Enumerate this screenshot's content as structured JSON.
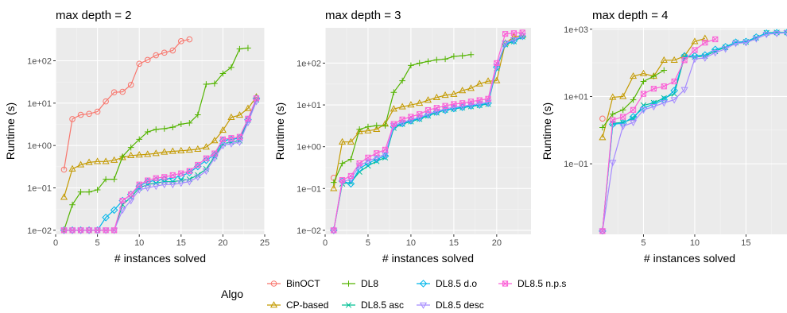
{
  "legend": {
    "title": "Algo",
    "position": "bottom"
  },
  "chart_data": [
    {
      "type": "line",
      "title": "max depth = 2",
      "xlabel": "# instances solved",
      "ylabel": "Runtime (s)",
      "y_scale": "log10",
      "xlim": [
        0,
        25
      ],
      "ylim": [
        0.008,
        600
      ],
      "x_ticks": [
        0,
        5,
        10,
        15,
        20,
        25
      ],
      "y_ticks": [
        {
          "value": 0.01,
          "label": "1e−02"
        },
        {
          "value": 0.1,
          "label": "1e−01"
        },
        {
          "value": 1,
          "label": "1e+00"
        },
        {
          "value": 10,
          "label": "1e+01"
        },
        {
          "value": 100,
          "label": "1e+02"
        }
      ],
      "series": [
        {
          "name": "BinOCT",
          "color": "#F8766D",
          "marker": "circle",
          "x": [
            1,
            2,
            3,
            4,
            5,
            6,
            7,
            8,
            9,
            10,
            11,
            12,
            13,
            14,
            15,
            16
          ],
          "y": [
            0.27,
            4.2,
            5.3,
            5.6,
            6.3,
            11,
            18,
            18.5,
            27,
            85,
            105,
            135,
            155,
            175,
            290,
            320
          ]
        },
        {
          "name": "CP-based",
          "color": "#C49A00",
          "marker": "triangle",
          "x": [
            1,
            2,
            3,
            4,
            5,
            6,
            7,
            8,
            9,
            10,
            11,
            12,
            13,
            14,
            15,
            16,
            17,
            18,
            19,
            20,
            21,
            22,
            23,
            24
          ],
          "y": [
            0.06,
            0.28,
            0.35,
            0.4,
            0.42,
            0.42,
            0.45,
            0.52,
            0.58,
            0.6,
            0.62,
            0.65,
            0.7,
            0.73,
            0.75,
            0.78,
            0.82,
            0.92,
            1.3,
            2.3,
            4.6,
            5.2,
            7.5,
            14
          ]
        },
        {
          "name": "DL8",
          "color": "#53B400",
          "marker": "plus",
          "x": [
            1,
            2,
            3,
            4,
            5,
            6,
            7,
            8,
            9,
            10,
            11,
            12,
            13,
            14,
            15,
            16,
            17,
            18,
            19,
            20,
            21,
            22,
            23
          ],
          "y": [
            0.01,
            0.04,
            0.08,
            0.08,
            0.09,
            0.16,
            0.16,
            0.55,
            0.9,
            1.4,
            2.1,
            2.4,
            2.5,
            2.7,
            3.2,
            3.4,
            5.3,
            28,
            29,
            50,
            70,
            190,
            200
          ]
        },
        {
          "name": "DL8.5 asc",
          "color": "#00C094",
          "marker": "cross",
          "x": [
            1,
            2,
            3,
            4,
            5,
            6,
            7,
            8,
            9,
            10,
            11,
            12,
            13,
            14,
            15,
            16,
            17,
            18,
            19,
            20,
            21,
            22,
            23,
            24
          ],
          "y": [
            0.01,
            0.01,
            0.01,
            0.01,
            0.01,
            0.01,
            0.01,
            0.04,
            0.06,
            0.1,
            0.12,
            0.13,
            0.14,
            0.14,
            0.15,
            0.16,
            0.2,
            0.28,
            0.55,
            1.1,
            1.2,
            1.3,
            4.0,
            12
          ]
        },
        {
          "name": "DL8.5 d.o",
          "color": "#00B6EB",
          "marker": "diamond",
          "x": [
            1,
            2,
            3,
            4,
            5,
            6,
            7,
            8,
            9,
            10,
            11,
            12,
            13,
            14,
            15,
            16,
            17,
            18,
            19,
            20,
            21,
            22,
            23,
            24
          ],
          "y": [
            0.01,
            0.01,
            0.01,
            0.01,
            0.01,
            0.02,
            0.03,
            0.05,
            0.07,
            0.11,
            0.14,
            0.15,
            0.16,
            0.17,
            0.19,
            0.23,
            0.32,
            0.45,
            0.6,
            1.3,
            1.4,
            1.5,
            4.1,
            13
          ]
        },
        {
          "name": "DL8.5 desc",
          "color": "#A58AFF",
          "marker": "triangle-down",
          "x": [
            1,
            2,
            3,
            4,
            5,
            6,
            7,
            8,
            9,
            10,
            11,
            12,
            13,
            14,
            15,
            16,
            17,
            18,
            19,
            20,
            21,
            22,
            23,
            24
          ],
          "y": [
            0.01,
            0.01,
            0.01,
            0.01,
            0.01,
            0.01,
            0.01,
            0.03,
            0.05,
            0.09,
            0.1,
            0.11,
            0.12,
            0.12,
            0.13,
            0.14,
            0.18,
            0.25,
            0.5,
            1.0,
            1.1,
            1.2,
            3.5,
            11
          ]
        },
        {
          "name": "DL8.5 n.p.s",
          "color": "#FB61D7",
          "marker": "square-x",
          "x": [
            1,
            2,
            3,
            4,
            5,
            6,
            7,
            8,
            9,
            10,
            11,
            12,
            13,
            14,
            15,
            16,
            17,
            18,
            19,
            20,
            21,
            22,
            23,
            24
          ],
          "y": [
            0.01,
            0.01,
            0.01,
            0.01,
            0.01,
            0.01,
            0.01,
            0.05,
            0.07,
            0.12,
            0.15,
            0.17,
            0.18,
            0.2,
            0.22,
            0.25,
            0.35,
            0.5,
            0.65,
            1.4,
            1.5,
            1.6,
            4.3,
            13
          ]
        }
      ]
    },
    {
      "type": "line",
      "title": "max depth = 3",
      "xlabel": "# instances solved",
      "ylabel": "Runtime (s)",
      "y_scale": "log10",
      "xlim": [
        0,
        24
      ],
      "ylim": [
        0.008,
        700
      ],
      "x_ticks": [
        0,
        5,
        10,
        15,
        20
      ],
      "y_ticks": [
        {
          "value": 0.01,
          "label": "1e−02"
        },
        {
          "value": 0.1,
          "label": "1e−01"
        },
        {
          "value": 1,
          "label": "1e+00"
        },
        {
          "value": 10,
          "label": "1e+01"
        },
        {
          "value": 100,
          "label": "1e+02"
        }
      ],
      "series": [
        {
          "name": "BinOCT",
          "color": "#F8766D",
          "marker": "circle",
          "x": [
            1
          ],
          "y": [
            0.18
          ]
        },
        {
          "name": "CP-based",
          "color": "#C49A00",
          "marker": "triangle",
          "x": [
            1,
            2,
            3,
            4,
            5,
            6,
            7,
            8,
            9,
            10,
            11,
            12,
            13,
            14,
            15,
            16,
            17,
            18,
            19,
            20,
            21,
            22,
            23
          ],
          "y": [
            0.1,
            1.3,
            1.3,
            2.3,
            2.4,
            2.6,
            3.5,
            8,
            9,
            10,
            11,
            13,
            15,
            17,
            18,
            22,
            25,
            32,
            37,
            38,
            300,
            420,
            460
          ]
        },
        {
          "name": "DL8",
          "color": "#53B400",
          "marker": "plus",
          "x": [
            1,
            2,
            3,
            4,
            5,
            6,
            7,
            8,
            9,
            10,
            11,
            12,
            13,
            14,
            15,
            16,
            17
          ],
          "y": [
            0.14,
            0.4,
            0.5,
            2.6,
            3.0,
            3.2,
            3.2,
            20,
            38,
            88,
            100,
            110,
            120,
            125,
            145,
            150,
            160
          ]
        },
        {
          "name": "DL8.5 asc",
          "color": "#00C094",
          "marker": "cross",
          "x": [
            1,
            2,
            3,
            4,
            5,
            6,
            7,
            8,
            9,
            10,
            11,
            12,
            13,
            14,
            15,
            16,
            17,
            18,
            19,
            20,
            21,
            22,
            23
          ],
          "y": [
            0.01,
            0.13,
            0.14,
            0.25,
            0.35,
            0.45,
            0.55,
            2.8,
            3.5,
            4.0,
            4.6,
            5.5,
            6.5,
            7.5,
            8.0,
            8.6,
            9.2,
            9.8,
            10.5,
            75,
            280,
            330,
            430
          ]
        },
        {
          "name": "DL8.5 d.o",
          "color": "#00B6EB",
          "marker": "diamond",
          "x": [
            1,
            2,
            3,
            4,
            5,
            6,
            7,
            8,
            9,
            10,
            11,
            12,
            13,
            14,
            15,
            16,
            17,
            18,
            19,
            20,
            21,
            22,
            23
          ],
          "y": [
            0.01,
            0.15,
            0.13,
            0.3,
            0.4,
            0.5,
            0.6,
            3.0,
            3.6,
            4.2,
            4.8,
            5.8,
            6.8,
            7.5,
            8.2,
            8.8,
            9.5,
            10,
            11,
            80,
            290,
            340,
            440
          ]
        },
        {
          "name": "DL8.5 desc",
          "color": "#A58AFF",
          "marker": "triangle-down",
          "x": [
            1,
            2,
            3,
            4,
            5,
            6,
            7,
            8,
            9,
            10,
            11,
            12,
            13,
            14,
            15,
            16,
            17,
            18,
            19,
            20,
            21,
            22,
            23
          ],
          "y": [
            0.01,
            0.14,
            0.17,
            0.35,
            0.45,
            0.55,
            0.65,
            3.2,
            3.8,
            4.4,
            5.0,
            6.0,
            7.0,
            8.0,
            8.8,
            9.4,
            10,
            10.8,
            11.5,
            85,
            300,
            360,
            450
          ]
        },
        {
          "name": "DL8.5 n.p.s",
          "color": "#FB61D7",
          "marker": "square-x",
          "x": [
            1,
            2,
            3,
            4,
            5,
            6,
            7,
            8,
            9,
            10,
            11,
            12,
            13,
            14,
            15,
            16,
            17,
            18,
            19,
            20,
            21,
            22,
            23
          ],
          "y": [
            0.01,
            0.16,
            0.2,
            0.4,
            0.55,
            0.7,
            0.85,
            3.5,
            4.5,
            5.2,
            6.0,
            7.5,
            8.5,
            9.5,
            10.5,
            11,
            12,
            13,
            14,
            100,
            500,
            520,
            540
          ]
        }
      ]
    },
    {
      "type": "line",
      "title": "max depth = 4",
      "xlabel": "# instances solved",
      "ylabel": "Runtime (s)",
      "y_scale": "log10",
      "xlim": [
        0,
        19
      ],
      "ylim": [
        0.0008,
        1100
      ],
      "x_ticks": [
        5,
        10,
        15
      ],
      "y_ticks": [
        {
          "value": 0.1,
          "label": "1e−01"
        },
        {
          "value": 10,
          "label": "1e+01"
        },
        {
          "value": 1000,
          "label": "1e+03"
        }
      ],
      "series": [
        {
          "name": "BinOCT",
          "color": "#F8766D",
          "marker": "circle",
          "x": [
            1
          ],
          "y": [
            2.2
          ]
        },
        {
          "name": "CP-based",
          "color": "#C49A00",
          "marker": "triangle",
          "x": [
            1,
            2,
            3,
            4,
            5,
            6,
            7,
            8,
            9,
            10,
            11
          ],
          "y": [
            0.6,
            9.5,
            10,
            40,
            48,
            40,
            120,
            120,
            160,
            430,
            530
          ]
        },
        {
          "name": "DL8",
          "color": "#53B400",
          "marker": "plus",
          "x": [
            1,
            2,
            3,
            4,
            5,
            6,
            7
          ],
          "y": [
            1.2,
            3,
            4,
            8,
            28,
            40,
            60
          ]
        },
        {
          "name": "DL8.5 asc",
          "color": "#00C094",
          "marker": "cross",
          "x": [
            1,
            2,
            3,
            4,
            5,
            6,
            7,
            8,
            9,
            10,
            11,
            12,
            13,
            14,
            15,
            16,
            17,
            18,
            19
          ],
          "y": [
            0.001,
            1.6,
            1.7,
            2.2,
            5.5,
            6.5,
            9,
            12,
            150,
            150,
            160,
            220,
            290,
            400,
            420,
            560,
            780,
            800,
            800
          ]
        },
        {
          "name": "DL8.5 d.o",
          "color": "#00B6EB",
          "marker": "diamond",
          "x": [
            1,
            2,
            3,
            4,
            5,
            6,
            7,
            8,
            9,
            10,
            11,
            12,
            13,
            14,
            15,
            16,
            17,
            18,
            19
          ],
          "y": [
            0.001,
            1.5,
            1.6,
            2.5,
            4.5,
            6,
            8,
            15,
            160,
            160,
            170,
            250,
            300,
            410,
            430,
            580,
            760,
            780,
            790
          ]
        },
        {
          "name": "DL8.5 desc",
          "color": "#A58AFF",
          "marker": "triangle-down",
          "x": [
            1,
            2,
            3,
            4,
            5,
            6,
            7,
            8,
            9,
            10,
            11,
            12,
            13,
            14,
            15,
            16,
            17,
            18,
            19
          ],
          "y": [
            0.001,
            0.11,
            1.3,
            1.7,
            4.0,
            5.0,
            6.5,
            8,
            16,
            130,
            140,
            200,
            260,
            380,
            400,
            520,
            700,
            750,
            780
          ]
        },
        {
          "name": "DL8.5 n.p.s",
          "color": "#FB61D7",
          "marker": "square-x",
          "x": [
            1,
            2,
            3,
            4,
            5,
            6,
            7,
            8,
            9,
            10,
            11,
            12
          ],
          "y": [
            0.001,
            2.0,
            2.5,
            4.0,
            12,
            17,
            20,
            28,
            120,
            240,
            400,
            500
          ]
        }
      ]
    }
  ]
}
